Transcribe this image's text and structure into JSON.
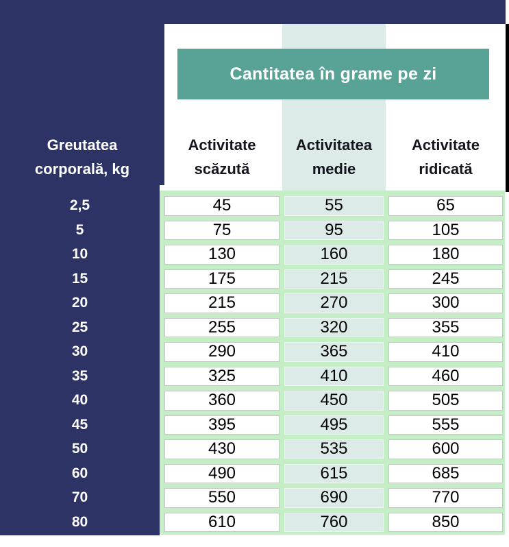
{
  "banner": {
    "title": "Cantitatea în grame pe zi"
  },
  "headers": {
    "weight_lines": [
      "Greutatea",
      "corporală, kg"
    ],
    "columns_lines": [
      [
        "Activitate",
        "scăzută"
      ],
      [
        "Activitatea",
        "medie"
      ],
      [
        "Activitate",
        "ridicată"
      ]
    ]
  },
  "chart_data": {
    "type": "table",
    "title": "Cantitatea în grame pe zi",
    "row_header": "Greutatea corporală, kg",
    "columns": [
      "Activitate scăzută",
      "Activitatea medie",
      "Activitate ridicată"
    ],
    "weights_kg": [
      "2,5",
      "5",
      "10",
      "15",
      "20",
      "25",
      "30",
      "35",
      "40",
      "45",
      "50",
      "60",
      "70",
      "80"
    ],
    "series": [
      {
        "name": "Activitate scăzută",
        "values": [
          45,
          75,
          130,
          175,
          215,
          255,
          290,
          325,
          360,
          395,
          430,
          490,
          550,
          610
        ]
      },
      {
        "name": "Activitatea medie",
        "values": [
          55,
          95,
          160,
          215,
          270,
          320,
          365,
          410,
          450,
          495,
          535,
          615,
          690,
          760
        ]
      },
      {
        "name": "Activitate ridicată",
        "values": [
          65,
          105,
          180,
          245,
          300,
          355,
          410,
          460,
          505,
          555,
          600,
          685,
          770,
          850
        ]
      }
    ],
    "layout_hints": {
      "highlighted_column": "Activitatea medie",
      "grid": "cells on pale green background"
    }
  },
  "colors": {
    "navy": "#2e3366",
    "teal": "#58a296",
    "mint": "#dcebe7",
    "green": "#c6eec6",
    "header_text": "#15151f",
    "shadow": "#000000"
  }
}
